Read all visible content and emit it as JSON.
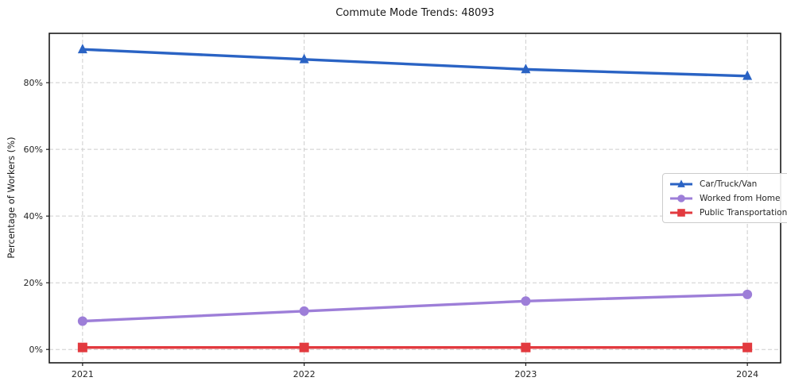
{
  "chart_data": {
    "type": "line",
    "title": "Commute Mode Trends: 48093",
    "xlabel": "",
    "ylabel": "Percentage of Workers (%)",
    "categories": [
      "2021",
      "2022",
      "2023",
      "2024"
    ],
    "series": [
      {
        "name": "Car/Truck/Van",
        "marker": "triangle",
        "color": "#2a63c4",
        "values": [
          90,
          87,
          84,
          82
        ]
      },
      {
        "name": "Worked from Home",
        "marker": "circle",
        "color": "#9d7ed8",
        "values": [
          8.5,
          11.5,
          14.5,
          16.5
        ]
      },
      {
        "name": "Public Transportation",
        "marker": "square",
        "color": "#e23a3f",
        "values": [
          0.6,
          0.6,
          0.6,
          0.6
        ]
      }
    ],
    "yticks": [
      0,
      20,
      40,
      60,
      80
    ],
    "ytick_labels": [
      "0%",
      "20%",
      "40%",
      "60%",
      "80%"
    ],
    "ylim": [
      -4,
      94.8
    ],
    "grid": true,
    "grid_color": "#cdcdcd",
    "spine_color": "#1a1a1a",
    "legend_position": "center-right",
    "legend_border_color": "#cccccc"
  }
}
